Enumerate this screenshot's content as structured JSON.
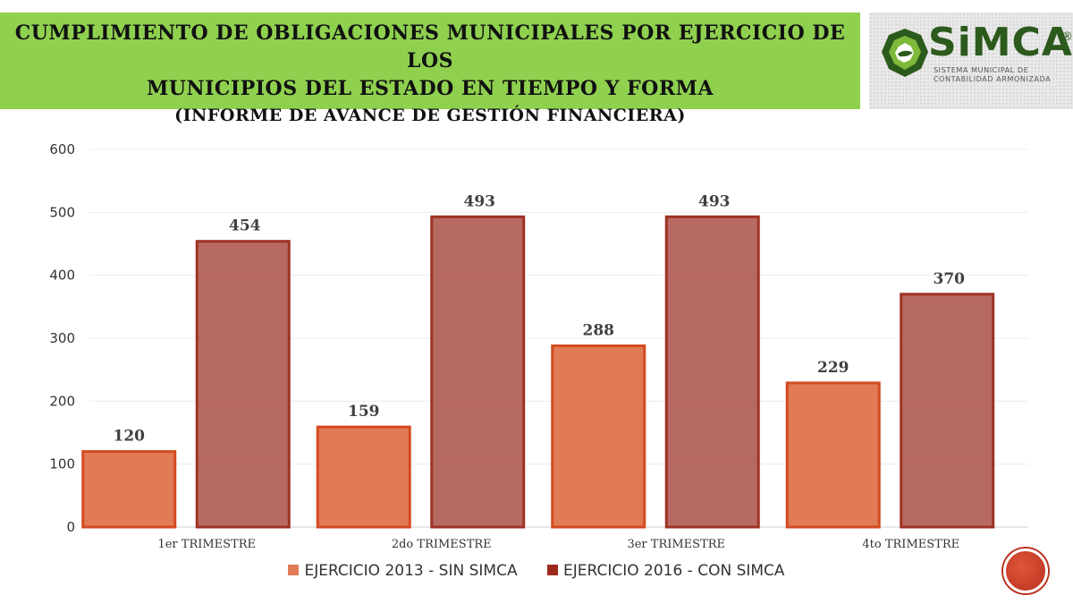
{
  "header": {
    "title_line1": "CUMPLIMIENTO DE OBLIGACIONES MUNICIPALES POR EJERCICIO DE LOS",
    "title_line2": "MUNICIPIOS DEL ESTADO EN TIEMPO Y FORMA",
    "subtitle": "(INFORME DE AVANCE DE GESTIÓN FINANCIERA)"
  },
  "logo": {
    "name": "SiMCA",
    "registered": "®",
    "tagline_1": "SISTEMA MUNICIPAL DE",
    "tagline_2": "CONTABILIDAD ARMONIZADA"
  },
  "colors": {
    "header_bg": "#8fd14f",
    "series_2013": "#e07b55",
    "series_2013_stroke": "#d44a20",
    "series_2016": "#b5645c",
    "series_2016_stroke": "#9c2a1c",
    "nav_button": "#c0391f"
  },
  "icons": {
    "nav": "nav-circle-icon",
    "logo": "simca-logo-icon"
  },
  "chart_data": {
    "type": "bar",
    "categories": [
      "1er TRIMESTRE",
      "2do TRIMESTRE",
      "3er TRIMESTRE",
      "4to TRIMESTRE"
    ],
    "series": [
      {
        "name": "EJERCICIO 2013 - SIN SIMCA",
        "values": [
          120,
          159,
          288,
          229
        ]
      },
      {
        "name": "EJERCICIO 2016 - CON SIMCA",
        "values": [
          454,
          493,
          493,
          370
        ]
      }
    ],
    "yticks": [
      0,
      100,
      200,
      300,
      400,
      500,
      600
    ],
    "ylim": [
      0,
      600
    ],
    "grid": true,
    "legend": "bottom",
    "data_labels": true,
    "title": "",
    "xlabel": "",
    "ylabel": ""
  }
}
